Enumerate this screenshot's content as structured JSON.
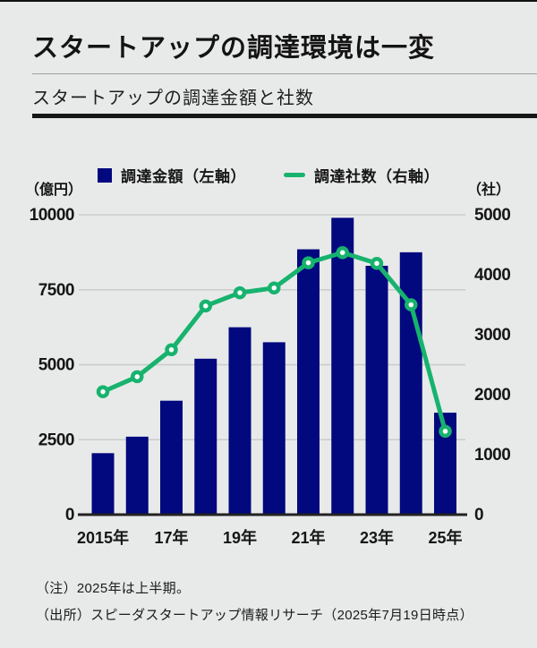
{
  "header": {
    "title": "スタートアップの調達環境は一変",
    "subtitle": "スタートアップの調達金額と社数"
  },
  "footer": {
    "note": "（注）2025年は上半期。",
    "source": "（出所）スピーダスタートアップ情報リサーチ（2025年7月19日時点）"
  },
  "chart_data": {
    "type": "bar+line",
    "x": [
      2015,
      2016,
      2017,
      2018,
      2019,
      2020,
      2021,
      2022,
      2023,
      2024,
      2025
    ],
    "x_tick_labels": [
      {
        "index": 0,
        "label": "2015年"
      },
      {
        "index": 2,
        "label": "17年"
      },
      {
        "index": 4,
        "label": "19年"
      },
      {
        "index": 6,
        "label": "21年"
      },
      {
        "index": 8,
        "label": "23年"
      },
      {
        "index": 10,
        "label": "25年"
      }
    ],
    "series": [
      {
        "name": "調達金額（左軸）",
        "type": "bar",
        "axis": "left",
        "color": "#02087e",
        "values": [
          2050,
          2600,
          3800,
          5200,
          6250,
          5750,
          8850,
          9900,
          8300,
          8750,
          3400
        ]
      },
      {
        "name": "調達社数（右軸）",
        "type": "line",
        "axis": "right",
        "color": "#17b36e",
        "values": [
          2050,
          2300,
          2750,
          3480,
          3700,
          3780,
          4200,
          4370,
          4190,
          3500,
          1390
        ]
      }
    ],
    "left_axis": {
      "unit": "（億円）",
      "ticks": [
        0,
        2500,
        5000,
        7500,
        10000
      ],
      "max": 10000
    },
    "right_axis": {
      "unit": "（社）",
      "ticks": [
        0,
        1000,
        2000,
        3000,
        4000,
        5000
      ],
      "max": 5000
    },
    "colors": {
      "grid": "#c9cccb",
      "baseline": "#222222",
      "background": "#e8eae9",
      "marker_fill": "#ffffff"
    },
    "legend_position": "top-center",
    "grid": true
  }
}
